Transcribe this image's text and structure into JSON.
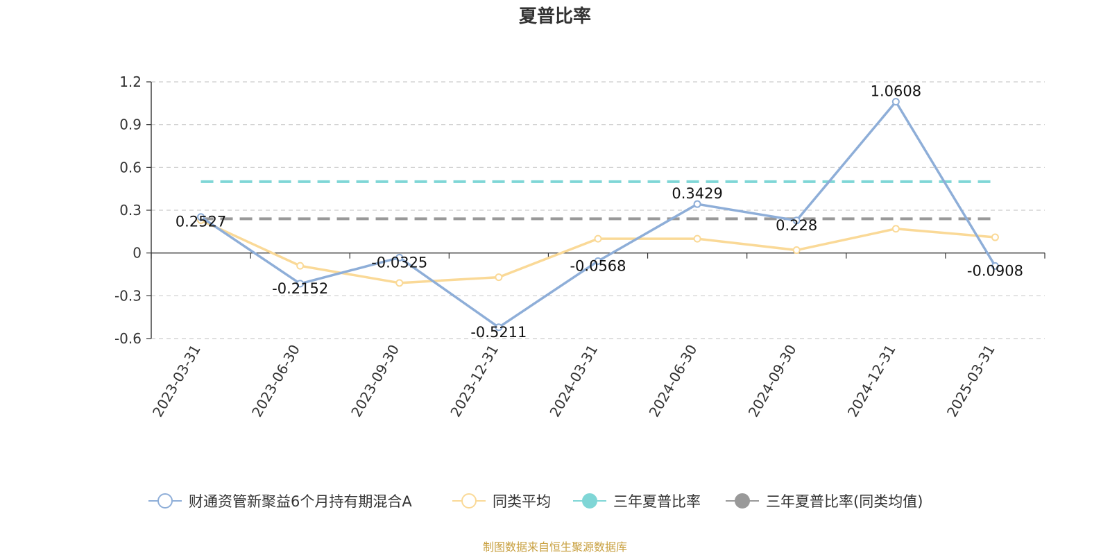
{
  "chart_data": {
    "type": "line",
    "title": "夏普比率",
    "categories": [
      "2023-03-31",
      "2023-06-30",
      "2023-09-30",
      "2023-12-31",
      "2024-03-31",
      "2024-06-30",
      "2024-09-30",
      "2024-12-31",
      "2025-03-31"
    ],
    "y_ticks": [
      "1.2",
      "0.9",
      "0.6",
      "0.3",
      "0",
      "-0.3",
      "-0.6"
    ],
    "ylim": [
      -0.6,
      1.2
    ],
    "grid": true,
    "legend_position": "bottom",
    "series": [
      {
        "name": "财通资管新聚益6个月持有期混合A",
        "color": "#8eaed8",
        "values": [
          0.2527,
          -0.2152,
          -0.0325,
          -0.5211,
          -0.0568,
          0.3429,
          0.228,
          1.0608,
          -0.0908
        ],
        "labels": [
          "0.2527",
          "-0.2152",
          "-0.0325",
          "-0.5211",
          "-0.0568",
          "0.3429",
          "0.228",
          "1.0608",
          "-0.0908"
        ]
      },
      {
        "name": "同类平均",
        "color": "#fad997",
        "values": [
          0.23,
          -0.09,
          -0.21,
          -0.17,
          0.1,
          0.1,
          0.02,
          0.17,
          0.11
        ]
      },
      {
        "name": "三年夏普比率",
        "color": "#7fd6d6",
        "line_style": "dashed",
        "value": 0.5
      },
      {
        "name": "三年夏普比率(同类均值)",
        "color": "#999999",
        "line_style": "dashed",
        "value": 0.24
      }
    ],
    "source": "制图数据来自恒生聚源数据库"
  }
}
